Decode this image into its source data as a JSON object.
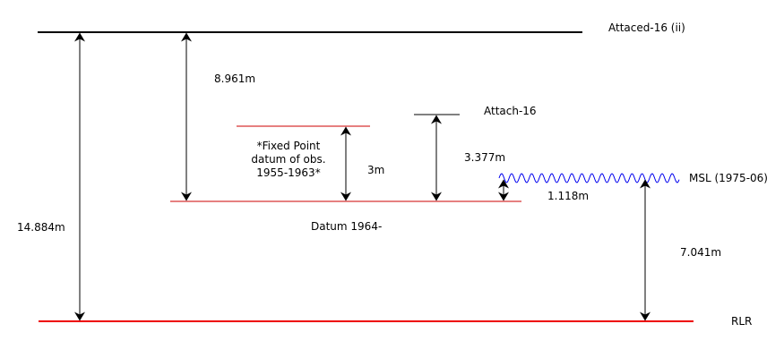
{
  "levels": {
    "attached_top": "Attaced-16 (ii)",
    "attach": "Attach-16",
    "fixed_point": [
      "*Fixed Point",
      "datum of obs.",
      "1955-1963*"
    ],
    "datum": "Datum 1964-",
    "msl": "MSL (1975-06)",
    "rlr": "RLR"
  },
  "measurements": {
    "total": "14.884m",
    "top_to_datum": "8.961m",
    "fixed_point": "3m",
    "attach_to_datum": "3.377m",
    "datum_to_msl": "1.118m",
    "msl_to_rlr": "7.041m"
  },
  "colors": {
    "line": "#000000",
    "datum": "#cc0000",
    "rlr": "#ee0000",
    "msl": "#0000ee"
  }
}
